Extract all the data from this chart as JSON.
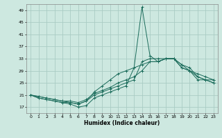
{
  "bg_color": "#cde8e0",
  "grid_color": "#aaccC4",
  "line_color": "#1a6b5a",
  "xlabel": "Humidex (Indice chaleur)",
  "xlim": [
    -0.5,
    23.5
  ],
  "ylim": [
    15,
    51
  ],
  "yticks": [
    17,
    21,
    25,
    29,
    33,
    37,
    41,
    45,
    49
  ],
  "xticks": [
    0,
    1,
    2,
    3,
    4,
    5,
    6,
    7,
    8,
    9,
    10,
    11,
    12,
    13,
    14,
    15,
    16,
    17,
    18,
    19,
    20,
    21,
    22,
    23
  ],
  "curves": [
    {
      "x": [
        0,
        1,
        2,
        3,
        4,
        5,
        6,
        7,
        8,
        9,
        10,
        11,
        12,
        13,
        14,
        15,
        16,
        17,
        18,
        19,
        20,
        21,
        22,
        23
      ],
      "y": [
        21,
        20,
        19.5,
        19,
        18.5,
        18,
        17,
        17.5,
        20,
        21,
        22,
        23,
        24,
        30,
        50,
        34,
        32,
        33,
        33,
        31,
        29,
        26,
        26,
        25
      ]
    },
    {
      "x": [
        0,
        1,
        2,
        3,
        4,
        5,
        6,
        7,
        8,
        9,
        10,
        11,
        12,
        13,
        14,
        15,
        16,
        17,
        18,
        19,
        20,
        21,
        22,
        23
      ],
      "y": [
        21,
        20,
        19.5,
        19,
        18.5,
        18.5,
        18,
        19,
        21,
        22,
        23,
        24,
        25,
        26,
        32,
        33,
        33,
        33,
        33,
        30,
        29,
        27,
        26,
        25
      ]
    },
    {
      "x": [
        0,
        1,
        2,
        3,
        4,
        5,
        6,
        7,
        8,
        9,
        10,
        11,
        12,
        13,
        14,
        15,
        16,
        17,
        18,
        19,
        20,
        21,
        22,
        23
      ],
      "y": [
        21,
        20.5,
        20,
        19.5,
        19,
        19,
        18.5,
        19.5,
        21.5,
        22.5,
        23.5,
        25,
        26,
        27,
        29,
        32,
        32,
        33,
        33,
        30,
        29,
        28,
        27,
        26
      ]
    },
    {
      "x": [
        0,
        1,
        2,
        3,
        4,
        5,
        6,
        7,
        8,
        9,
        10,
        11,
        12,
        13,
        14,
        15,
        16,
        17,
        18,
        19,
        20,
        21,
        22,
        23
      ],
      "y": [
        21,
        20.5,
        20,
        19.5,
        19,
        18.5,
        18,
        19,
        22,
        24,
        26,
        28,
        29,
        30,
        31,
        32,
        32,
        33,
        33,
        31,
        30,
        27,
        26,
        26
      ]
    }
  ]
}
